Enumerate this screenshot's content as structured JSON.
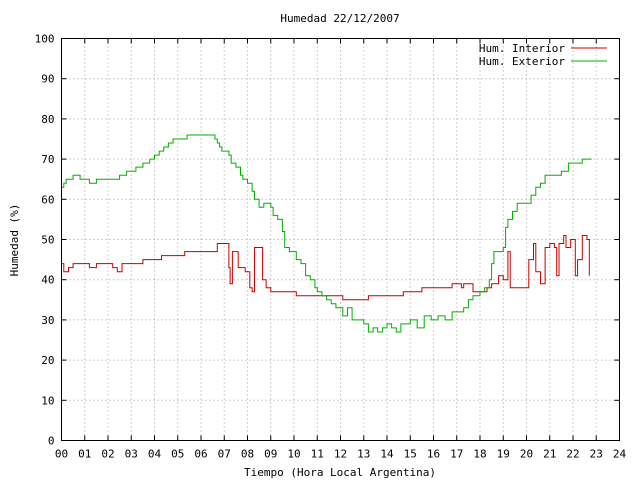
{
  "chart_data": {
    "type": "line",
    "title": "Humedad 22/12/2007",
    "xlabel": "Tiempo (Hora Local Argentina)",
    "ylabel": "Humedad (%)",
    "xlim": [
      0,
      24
    ],
    "ylim": [
      0,
      100
    ],
    "grid": true,
    "legend_position": "top-right",
    "x_tick_labels": [
      "00",
      "01",
      "02",
      "03",
      "04",
      "05",
      "06",
      "07",
      "08",
      "09",
      "10",
      "11",
      "12",
      "13",
      "14",
      "15",
      "16",
      "17",
      "18",
      "19",
      "20",
      "21",
      "22",
      "23",
      "24"
    ],
    "y_tick_labels": [
      "0",
      "10",
      "20",
      "30",
      "40",
      "50",
      "60",
      "70",
      "80",
      "90",
      "100"
    ],
    "series": [
      {
        "name": "Hum. Interior",
        "color": "#cc0000",
        "points": [
          [
            0.0,
            44
          ],
          [
            0.1,
            42
          ],
          [
            0.3,
            43
          ],
          [
            0.5,
            44
          ],
          [
            1.0,
            44
          ],
          [
            1.2,
            43
          ],
          [
            1.5,
            44
          ],
          [
            2.0,
            44
          ],
          [
            2.2,
            43
          ],
          [
            2.4,
            42
          ],
          [
            2.6,
            44
          ],
          [
            3.0,
            44
          ],
          [
            3.5,
            45
          ],
          [
            4.0,
            45
          ],
          [
            4.3,
            46
          ],
          [
            5.0,
            46
          ],
          [
            5.3,
            47
          ],
          [
            6.0,
            47
          ],
          [
            6.5,
            47
          ],
          [
            6.7,
            49
          ],
          [
            7.0,
            49
          ],
          [
            7.2,
            43
          ],
          [
            7.25,
            39
          ],
          [
            7.35,
            47
          ],
          [
            7.5,
            47
          ],
          [
            7.6,
            43
          ],
          [
            7.9,
            42
          ],
          [
            8.1,
            38
          ],
          [
            8.2,
            37
          ],
          [
            8.3,
            48
          ],
          [
            8.5,
            48
          ],
          [
            8.65,
            40
          ],
          [
            8.8,
            38
          ],
          [
            9.0,
            37
          ],
          [
            9.5,
            37
          ],
          [
            10.0,
            37
          ],
          [
            10.1,
            36
          ],
          [
            10.5,
            36
          ],
          [
            11.0,
            36
          ],
          [
            11.5,
            36
          ],
          [
            12.0,
            36
          ],
          [
            12.1,
            35
          ],
          [
            12.3,
            35
          ],
          [
            12.6,
            35
          ],
          [
            13.0,
            35
          ],
          [
            13.2,
            36
          ],
          [
            13.5,
            36
          ],
          [
            14.0,
            36
          ],
          [
            14.5,
            36
          ],
          [
            14.7,
            37
          ],
          [
            15.0,
            37
          ],
          [
            15.5,
            38
          ],
          [
            16.0,
            38
          ],
          [
            16.5,
            38
          ],
          [
            16.8,
            39
          ],
          [
            17.2,
            38
          ],
          [
            17.3,
            39
          ],
          [
            17.5,
            39
          ],
          [
            17.7,
            37
          ],
          [
            18.0,
            37
          ],
          [
            18.3,
            38
          ],
          [
            18.5,
            39
          ],
          [
            18.8,
            41
          ],
          [
            19.0,
            40
          ],
          [
            19.2,
            47
          ],
          [
            19.3,
            38
          ],
          [
            19.8,
            38
          ],
          [
            20.0,
            38
          ],
          [
            20.1,
            45
          ],
          [
            20.3,
            49
          ],
          [
            20.4,
            42
          ],
          [
            20.6,
            39
          ],
          [
            20.8,
            48
          ],
          [
            21.0,
            49
          ],
          [
            21.2,
            48
          ],
          [
            21.3,
            41
          ],
          [
            21.4,
            49
          ],
          [
            21.6,
            51
          ],
          [
            21.7,
            48
          ],
          [
            21.9,
            50
          ],
          [
            22.0,
            50
          ],
          [
            22.1,
            41
          ],
          [
            22.2,
            45
          ],
          [
            22.4,
            51
          ],
          [
            22.6,
            50
          ],
          [
            22.7,
            41
          ]
        ]
      },
      {
        "name": "Hum. Exterior",
        "color": "#00b000",
        "points": [
          [
            0.0,
            63
          ],
          [
            0.1,
            64
          ],
          [
            0.2,
            65
          ],
          [
            0.5,
            66
          ],
          [
            0.8,
            65
          ],
          [
            1.0,
            65
          ],
          [
            1.2,
            64
          ],
          [
            1.5,
            65
          ],
          [
            2.0,
            65
          ],
          [
            2.5,
            66
          ],
          [
            2.8,
            67
          ],
          [
            3.0,
            67
          ],
          [
            3.2,
            68
          ],
          [
            3.5,
            69
          ],
          [
            3.8,
            70
          ],
          [
            4.0,
            71
          ],
          [
            4.2,
            72
          ],
          [
            4.4,
            73
          ],
          [
            4.6,
            74
          ],
          [
            4.8,
            75
          ],
          [
            5.0,
            75
          ],
          [
            5.2,
            75
          ],
          [
            5.4,
            76
          ],
          [
            5.6,
            76
          ],
          [
            6.0,
            76
          ],
          [
            6.2,
            76
          ],
          [
            6.4,
            76
          ],
          [
            6.6,
            75
          ],
          [
            6.7,
            74
          ],
          [
            6.8,
            73
          ],
          [
            6.9,
            72
          ],
          [
            7.0,
            72
          ],
          [
            7.2,
            71
          ],
          [
            7.3,
            69
          ],
          [
            7.5,
            68
          ],
          [
            7.7,
            66
          ],
          [
            7.8,
            65
          ],
          [
            8.0,
            64
          ],
          [
            8.2,
            62
          ],
          [
            8.3,
            60
          ],
          [
            8.5,
            58
          ],
          [
            8.7,
            59
          ],
          [
            9.0,
            58
          ],
          [
            9.1,
            56
          ],
          [
            9.3,
            55
          ],
          [
            9.5,
            52
          ],
          [
            9.6,
            48
          ],
          [
            9.8,
            47
          ],
          [
            10.0,
            47
          ],
          [
            10.1,
            45
          ],
          [
            10.3,
            44
          ],
          [
            10.5,
            41
          ],
          [
            10.7,
            40
          ],
          [
            10.9,
            38
          ],
          [
            11.0,
            37
          ],
          [
            11.2,
            36
          ],
          [
            11.4,
            35
          ],
          [
            11.6,
            34
          ],
          [
            11.8,
            33
          ],
          [
            12.0,
            33
          ],
          [
            12.1,
            31
          ],
          [
            12.3,
            33
          ],
          [
            12.5,
            30
          ],
          [
            12.7,
            30
          ],
          [
            13.0,
            29
          ],
          [
            13.2,
            27
          ],
          [
            13.4,
            28
          ],
          [
            13.6,
            27
          ],
          [
            13.8,
            28
          ],
          [
            14.0,
            29
          ],
          [
            14.2,
            28
          ],
          [
            14.4,
            27
          ],
          [
            14.6,
            29
          ],
          [
            15.0,
            30
          ],
          [
            15.3,
            28
          ],
          [
            15.6,
            31
          ],
          [
            15.9,
            30
          ],
          [
            16.2,
            31
          ],
          [
            16.5,
            30
          ],
          [
            16.8,
            32
          ],
          [
            17.0,
            32
          ],
          [
            17.3,
            33
          ],
          [
            17.5,
            35
          ],
          [
            17.7,
            36
          ],
          [
            18.0,
            37
          ],
          [
            18.1,
            37
          ],
          [
            18.2,
            38
          ],
          [
            18.4,
            40
          ],
          [
            18.5,
            44
          ],
          [
            18.6,
            47
          ],
          [
            18.8,
            47
          ],
          [
            19.0,
            48
          ],
          [
            19.1,
            53
          ],
          [
            19.2,
            55
          ],
          [
            19.4,
            57
          ],
          [
            19.6,
            59
          ],
          [
            20.0,
            59
          ],
          [
            20.2,
            61
          ],
          [
            20.4,
            63
          ],
          [
            20.6,
            64
          ],
          [
            20.8,
            66
          ],
          [
            21.0,
            66
          ],
          [
            21.3,
            66
          ],
          [
            21.5,
            67
          ],
          [
            21.8,
            69
          ],
          [
            22.0,
            69
          ],
          [
            22.2,
            69
          ],
          [
            22.4,
            70
          ],
          [
            22.6,
            70
          ],
          [
            22.8,
            70
          ]
        ]
      }
    ]
  }
}
